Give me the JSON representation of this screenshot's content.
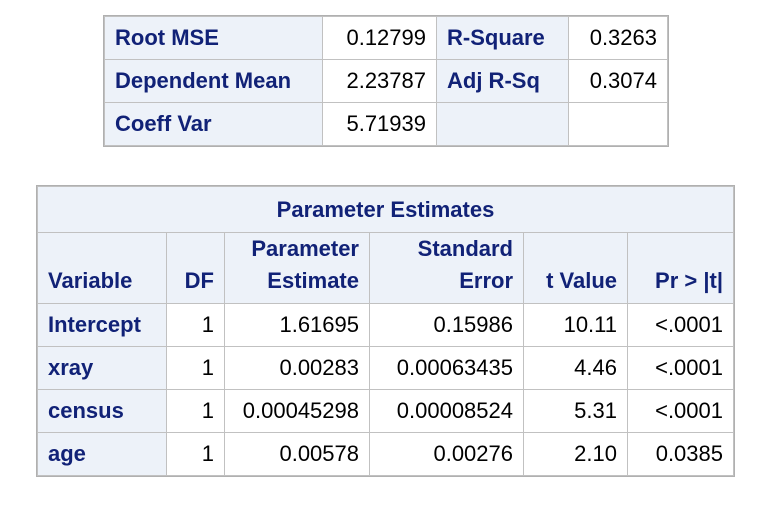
{
  "fit_statistics": {
    "rows": [
      {
        "label": "Root MSE",
        "value": "0.12799",
        "label2": "R-Square",
        "value2": "0.3263"
      },
      {
        "label": "Dependent Mean",
        "value": "2.23787",
        "label2": "Adj R-Sq",
        "value2": "0.3074"
      },
      {
        "label": "Coeff Var",
        "value": "5.71939",
        "label2": "",
        "value2": ""
      }
    ]
  },
  "parameter_estimates": {
    "title": "Parameter Estimates",
    "headers": {
      "variable": "Variable",
      "df": "DF",
      "estimate_line1": "Parameter",
      "estimate_line2": "Estimate",
      "stderr_line1": "Standard",
      "stderr_line2": "Error",
      "tvalue": "t Value",
      "p": "Pr > |t|"
    },
    "rows": [
      {
        "variable": "Intercept",
        "df": "1",
        "estimate": "1.61695",
        "stderr": "0.15986",
        "t": "10.11",
        "p": "<.0001"
      },
      {
        "variable": "xray",
        "df": "1",
        "estimate": "0.00283",
        "stderr": "0.00063435",
        "t": "4.46",
        "p": "<.0001"
      },
      {
        "variable": "census",
        "df": "1",
        "estimate": "0.00045298",
        "stderr": "0.00008524",
        "t": "5.31",
        "p": "<.0001"
      },
      {
        "variable": "age",
        "df": "1",
        "estimate": "0.00578",
        "stderr": "0.00276",
        "t": "2.10",
        "p": "0.0385"
      }
    ]
  }
}
